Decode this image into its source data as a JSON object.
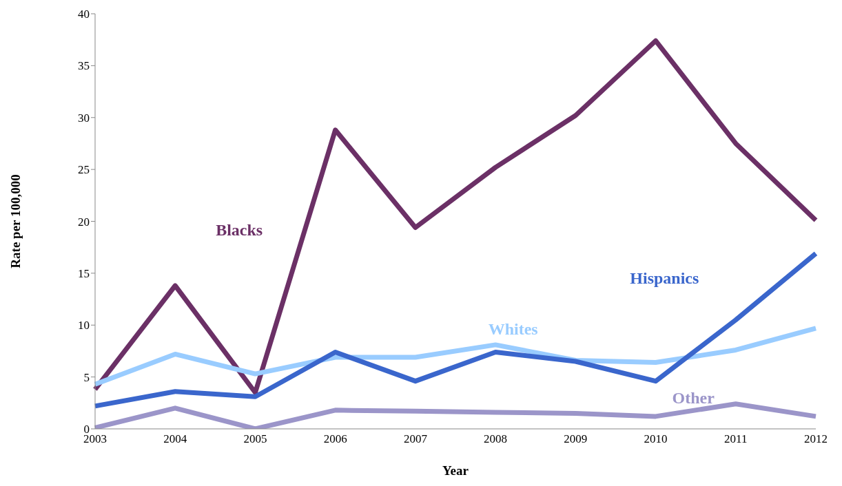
{
  "chart_data": {
    "type": "line",
    "xlabel": "Year",
    "ylabel": "Rate per 100,000",
    "categories": [
      "2003",
      "2004",
      "2005",
      "2006",
      "2007",
      "2008",
      "2009",
      "2010",
      "2011",
      "2012"
    ],
    "series": [
      {
        "name": "Blacks",
        "color": "#6b3066",
        "values": [
          3.8,
          13.8,
          3.5,
          28.8,
          19.4,
          25.2,
          30.2,
          37.4,
          27.5,
          20.1
        ]
      },
      {
        "name": "Whites",
        "color": "#99ccff",
        "values": [
          4.3,
          7.2,
          5.3,
          6.9,
          6.9,
          8.1,
          6.6,
          6.4,
          7.6,
          9.7
        ]
      },
      {
        "name": "Hispanics",
        "color": "#3a66cc",
        "values": [
          2.2,
          3.6,
          3.1,
          7.4,
          4.6,
          7.4,
          6.5,
          4.6,
          10.5,
          16.9
        ]
      },
      {
        "name": "Other",
        "color": "#9b95c9",
        "values": [
          0.1,
          2.0,
          0.0,
          1.8,
          1.7,
          1.6,
          1.5,
          1.2,
          2.4,
          1.2
        ]
      }
    ],
    "ylim": [
      0,
      40
    ],
    "yticks": [
      0,
      5,
      10,
      15,
      20,
      25,
      30,
      35,
      40
    ],
    "grid": false,
    "legend": false,
    "marker": "none",
    "line_style": "solid"
  }
}
